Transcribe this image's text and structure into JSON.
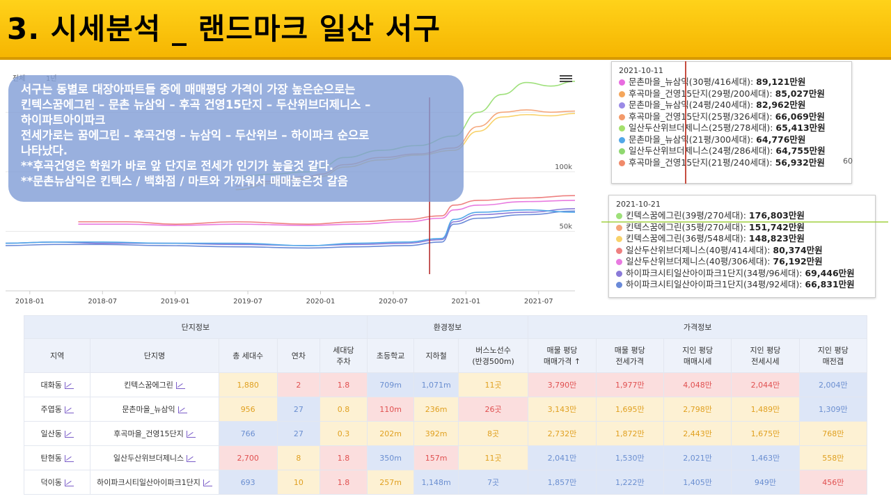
{
  "title": "3. 시세분석 _ 랜드마크 일산 서구",
  "range_buttons": [
    "전체",
    "1년"
  ],
  "note_lines": [
    "서구는 동별로 대장아파트들 중에 매매평당 가격이 가장 높은순으로는",
    "킨텍스꿈에그린 – 문촌 뉴삼익 – 후곡 건영15단지 – 두산위브더제니스 –",
    "하이파트아이파크",
    "전세가로는 꿈에그린 – 후곡건영 – 뉴삼익 – 두산위브 – 하이파크 순으로",
    "나타났다.",
    "**후곡건영은 학원가 바로 앞 단지로 전세가 인기가 높을것 같다.",
    "**문촌뉴삼익은 킨텍스 / 백화점 / 마트와 가까워서 매매높은것 갈음"
  ],
  "tooltip1": {
    "date": "2021-10-11",
    "rows": [
      {
        "label": "문촌마을_뉴삼익(30평/416세대): ",
        "value": "89,121만원",
        "color": "#e86ce0"
      },
      {
        "label": "후곡마을_건영15단지(29평/200세대): ",
        "value": "85,027만원",
        "color": "#f5a65b"
      },
      {
        "label": "문촌마을_뉴삼익(24평/240세대): ",
        "value": "82,962만원",
        "color": "#9a8ae6"
      },
      {
        "label": "후곡마을_건영15단지(25평/326세대): ",
        "value": "66,069만원",
        "color": "#f39a6a"
      },
      {
        "label": "일산두산위브더제니스(25평/278세대): ",
        "value": "65,413만원",
        "color": "#a4e06c"
      },
      {
        "label": "문촌마을_뉴삼익(21평/300세대): ",
        "value": "64,776만원",
        "color": "#52a8e8"
      },
      {
        "label": "일산두산위브더제니스(24평/286세대): ",
        "value": "64,755만원",
        "color": "#8fd870"
      },
      {
        "label": "후곡마을_건영15단지(21평/240세대): ",
        "value": "56,932만원",
        "color": "#f08a6a"
      }
    ],
    "edge_label": "60"
  },
  "tooltip2": {
    "date": "2021-10-21",
    "rows": [
      {
        "label": "킨텍스꿈에그린(39평/270세대): ",
        "value": "176,803만원",
        "color": "#9ee07a"
      },
      {
        "label": "킨텍스꿈에그린(35평/270세대): ",
        "value": "151,742만원",
        "color": "#f5a67a"
      },
      {
        "label": "킨텍스꿈에그린(36평/548세대): ",
        "value": "148,823만원",
        "color": "#f8d26a"
      },
      {
        "label": "일산두산위브더제니스(40평/414세대): ",
        "value": "80,374만원",
        "color": "#ee8080"
      },
      {
        "label": "일산두산위브더제니스(40평/306세대): ",
        "value": "76,192만원",
        "color": "#e87ae0"
      },
      {
        "label": "하이파크시티일산아이파크1단지(34평/96세대): ",
        "value": "69,446만원",
        "color": "#8a7ad8"
      },
      {
        "label": "하이파크시티일산아이파크1단지(34평/92세대): ",
        "value": "66,831만원",
        "color": "#6a8ad8"
      }
    ]
  },
  "chart_data": {
    "type": "line",
    "x_ticks": [
      "2018-01",
      "2018-07",
      "2019-01",
      "2019-07",
      "2020-01",
      "2020-07",
      "2021-01",
      "2021-07"
    ],
    "y_ticks": [
      "50k",
      "100k"
    ],
    "ylim": [
      0,
      180000
    ],
    "xlim": [
      "2017-11",
      "2021-10"
    ],
    "series": [
      {
        "color": "#9ee07a",
        "x": [
          "2019-06",
          "2019-09",
          "2019-12",
          "2020-01",
          "2020-03",
          "2020-06",
          "2020-09",
          "2020-12",
          "2021-02",
          "2021-04",
          "2021-06",
          "2021-08",
          "2021-10"
        ],
        "values": [
          96000,
          98000,
          100000,
          104000,
          112000,
          118000,
          122000,
          130000,
          150000,
          165000,
          175000,
          172000,
          176000
        ]
      },
      {
        "color": "#f5a67a",
        "x": [
          "2019-06",
          "2019-09",
          "2019-12",
          "2020-01",
          "2020-03",
          "2020-06",
          "2020-09",
          "2020-12",
          "2021-02",
          "2021-04",
          "2021-06",
          "2021-08",
          "2021-10"
        ],
        "values": [
          88000,
          92000,
          96000,
          98000,
          106000,
          112000,
          115000,
          120000,
          138000,
          150000,
          152000,
          150000,
          151000
        ]
      },
      {
        "color": "#f8d26a",
        "x": [
          "2019-06",
          "2019-09",
          "2019-12",
          "2020-01",
          "2020-03",
          "2020-06",
          "2020-09",
          "2020-12",
          "2021-02",
          "2021-04",
          "2021-06",
          "2021-08",
          "2021-10"
        ],
        "values": [
          85000,
          90000,
          94000,
          96000,
          104000,
          110000,
          114000,
          118000,
          134000,
          146000,
          148000,
          147000,
          149000
        ]
      },
      {
        "color": "#ee8080",
        "x": [
          "2018-05",
          "2018-09",
          "2019-01",
          "2019-06",
          "2019-12",
          "2020-04",
          "2020-08",
          "2020-11",
          "2020-12",
          "2021-02",
          "2021-06",
          "2021-10"
        ],
        "values": [
          58000,
          58000,
          56000,
          58000,
          56000,
          58000,
          60000,
          63000,
          72000,
          76000,
          78000,
          80000
        ]
      },
      {
        "color": "#e87ae0",
        "x": [
          "2018-05",
          "2018-09",
          "2019-01",
          "2019-06",
          "2019-12",
          "2020-04",
          "2020-08",
          "2020-11",
          "2020-12",
          "2021-02",
          "2021-06",
          "2021-10"
        ],
        "values": [
          56000,
          56000,
          55000,
          56000,
          55000,
          56000,
          58000,
          61000,
          68000,
          72000,
          75000,
          76000
        ]
      },
      {
        "color": "#8a7ad8",
        "x": [
          "2017-11",
          "2018-03",
          "2018-07",
          "2018-12",
          "2019-06",
          "2019-12",
          "2020-04",
          "2020-08",
          "2020-11",
          "2020-12",
          "2021-02",
          "2021-06",
          "2021-10"
        ],
        "values": [
          40000,
          41000,
          40000,
          40000,
          39000,
          38000,
          39000,
          40000,
          43000,
          58000,
          64000,
          66000,
          69000
        ]
      },
      {
        "color": "#6a8ad8",
        "x": [
          "2017-11",
          "2018-03",
          "2018-07",
          "2018-12",
          "2019-06",
          "2019-12",
          "2020-04",
          "2020-08",
          "2020-11",
          "2020-12",
          "2021-02",
          "2021-06",
          "2021-10"
        ],
        "values": [
          38000,
          39000,
          39000,
          38000,
          37000,
          36000,
          37000,
          38000,
          41000,
          56000,
          61000,
          64000,
          67000
        ]
      },
      {
        "color": "#52a8e8",
        "x": [
          "2017-11",
          "2018-03",
          "2018-07",
          "2018-12",
          "2019-06",
          "2019-12",
          "2020-04",
          "2020-08",
          "2020-11",
          "2020-12",
          "2021-02",
          "2021-06",
          "2021-10"
        ],
        "values": [
          40000,
          41000,
          41000,
          40000,
          40000,
          38000,
          40000,
          41000,
          44000,
          60000,
          66000,
          68000,
          66000
        ]
      }
    ],
    "marker_x": "2020-10",
    "grid": true
  },
  "table": {
    "groups": [
      {
        "label": "단지정보",
        "span": 5
      },
      {
        "label": "환경정보",
        "span": 3
      },
      {
        "label": "가격정보",
        "span": 5
      }
    ],
    "headers": [
      "지역",
      "단지명",
      "총 세대수",
      "연차",
      "세대당\n주차",
      "초등학교",
      "지하철",
      "버스노선수\n(반경500m)",
      "매물 평당\n매매가격 ↑",
      "매물 평당\n전세가격",
      "지인 평당\n매매시세",
      "지인 평당\n전세시세",
      "지인 평당\n매전갭"
    ],
    "rows": [
      {
        "cells": [
          "대화동",
          "킨텍스꿈에그린",
          "1,880",
          "2",
          "1.8",
          "709m",
          "1,071m",
          "11곳",
          "3,790만",
          "1,977만",
          "4,048만",
          "2,044만",
          "2,004만"
        ],
        "tones": [
          "",
          "",
          "y",
          "r",
          "r",
          "b",
          "b",
          "y",
          "r",
          "r",
          "r",
          "r",
          "b"
        ]
      },
      {
        "cells": [
          "주엽동",
          "문촌마을_뉴삼익",
          "956",
          "27",
          "0.8",
          "110m",
          "236m",
          "26곳",
          "3,143만",
          "1,695만",
          "2,798만",
          "1,489만",
          "1,309만"
        ],
        "tones": [
          "",
          "",
          "y",
          "b",
          "y",
          "r",
          "y",
          "r",
          "y",
          "y",
          "y",
          "y",
          "b"
        ]
      },
      {
        "cells": [
          "일산동",
          "후곡마을_건영15단지",
          "766",
          "27",
          "0.3",
          "202m",
          "392m",
          "8곳",
          "2,732만",
          "1,872만",
          "2,443만",
          "1,675만",
          "768만"
        ],
        "tones": [
          "",
          "",
          "b",
          "b",
          "y",
          "y",
          "y",
          "y",
          "y",
          "y",
          "y",
          "y",
          "y"
        ]
      },
      {
        "cells": [
          "탄현동",
          "일산두산위브더제니스",
          "2,700",
          "8",
          "1.8",
          "350m",
          "157m",
          "11곳",
          "2,041만",
          "1,530만",
          "2,021만",
          "1,463만",
          "558만"
        ],
        "tones": [
          "",
          "",
          "r",
          "y",
          "r",
          "b",
          "r",
          "y",
          "b",
          "b",
          "b",
          "b",
          "y"
        ]
      },
      {
        "cells": [
          "덕이동",
          "하이파크시티일산아이파크1단지",
          "693",
          "10",
          "1.8",
          "257m",
          "1,148m",
          "7곳",
          "1,857만",
          "1,222만",
          "1,405만",
          "949만",
          "456만"
        ],
        "tones": [
          "",
          "",
          "b",
          "y",
          "r",
          "y",
          "b",
          "b",
          "b",
          "b",
          "b",
          "b",
          "r"
        ]
      }
    ]
  }
}
